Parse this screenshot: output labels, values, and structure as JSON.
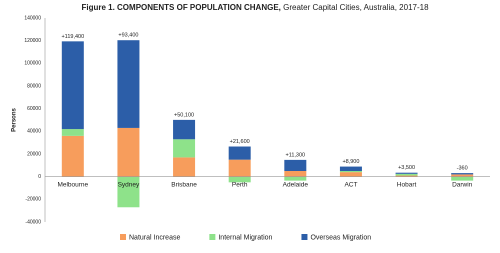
{
  "chart_data": {
    "type": "stacked-bar",
    "title": "Figure 1. COMPONENTS OF POPULATION CHANGE,",
    "subtitle": "Greater Capital Cities, Australia, 2017-18",
    "y_label": "Persons",
    "categories": [
      "Melbourne",
      "Sydney",
      "Brisbane",
      "Perth",
      "Adelaide",
      "ACT",
      "Hobart",
      "Darwin"
    ],
    "series": [
      {
        "name": "Natural Increase",
        "color": "#f79d5c",
        "values": [
          36000,
          43000,
          17000,
          15000,
          5000,
          4000,
          1000,
          2000
        ]
      },
      {
        "name": "Internal Migration",
        "color": "#8ee28a",
        "values": [
          6000,
          -27000,
          16000,
          -5000,
          -3500,
          1000,
          1500,
          -3500
        ]
      },
      {
        "name": "Overseas Migration",
        "color": "#2c5ea8",
        "values": [
          77400,
          77400,
          17100,
          11600,
          9800,
          3900,
          1000,
          1140
        ]
      }
    ],
    "totals": [
      119400,
      93400,
      50100,
      21600,
      11300,
      8900,
      3500,
      -360
    ],
    "total_labels": [
      "+119,400",
      "+93,400",
      "+50,100",
      "+21,600",
      "+11,300",
      "+8,900",
      "+3,500",
      "-360"
    ],
    "ylim": [
      -40000,
      140000
    ],
    "yticks": [
      -40000,
      -20000,
      0,
      20000,
      40000,
      60000,
      80000,
      100000,
      120000,
      140000
    ],
    "legend": "bottom"
  }
}
